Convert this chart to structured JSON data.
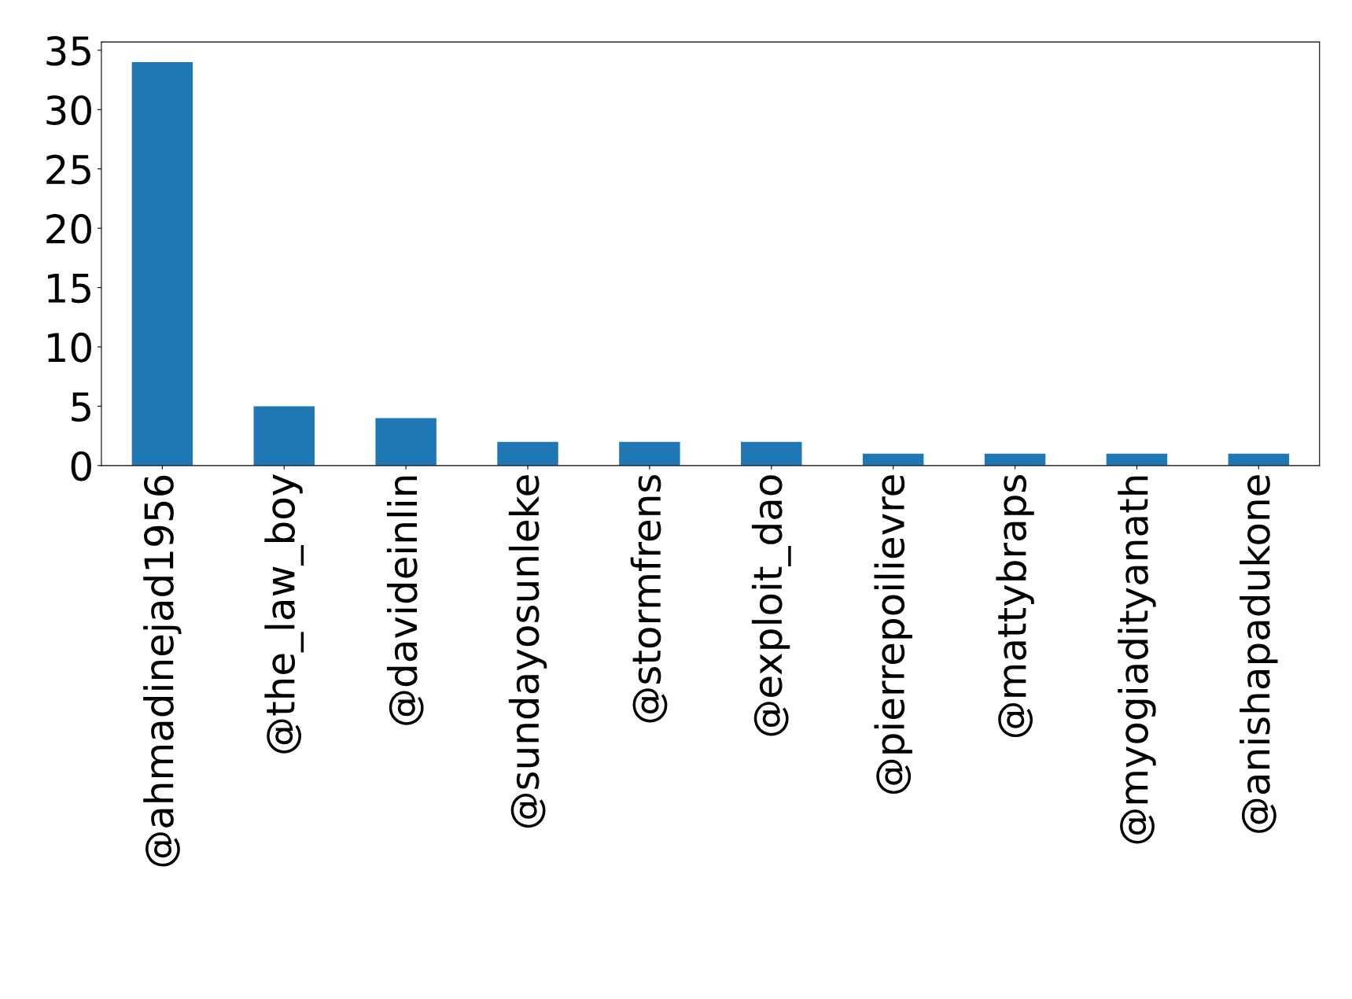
{
  "chart_data": {
    "type": "bar",
    "categories": [
      "@ahmadinejad1956",
      "@the_law_boy",
      "@davideinlin",
      "@sundayosunleke",
      "@stormfrens",
      "@exploit_dao",
      "@pierrepoilievre",
      "@mattybraps",
      "@myogiadityanath",
      "@anishapadukone"
    ],
    "values": [
      34,
      5,
      4,
      2,
      2,
      2,
      1,
      1,
      1,
      1
    ],
    "color": "#1f77b4",
    "ylim": [
      0,
      35.7
    ],
    "yticks": [
      0,
      5,
      10,
      15,
      20,
      25,
      30,
      35
    ],
    "grid": false,
    "legend": false
  }
}
